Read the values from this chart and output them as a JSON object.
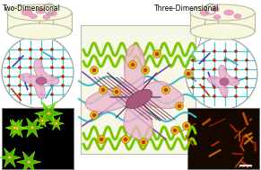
{
  "title_left": "Two-Dimensional",
  "title_right": "Three-Dimensional",
  "bg_color": "#f7f7e8",
  "scaffold_green": "#7cc800",
  "fiber_blue": "#44bbcc",
  "fiber_blue2": "#3399bb",
  "fiber_purple": "#7755aa",
  "dot_yellow": "#ddbb22",
  "dot_red": "#cc2200",
  "cell_fill": "#e8a8c0",
  "cell_edge": "#cc7799",
  "nucleus_fill": "#b06888",
  "nucleus_edge": "#885060",
  "stress_fiber": "#7a3355",
  "grid_cyan": "#44cccc",
  "grid_dot": "#cc2200",
  "blue_line": "#3344aa",
  "flask_fill": "#f8f8e0",
  "flask_edge": "#bbbb99",
  "flask_cell": "#f0a0c0",
  "fl_left_bg": "#000000",
  "fl_right_bg": "#180800",
  "white": "#ffffff",
  "gray": "#999999"
}
